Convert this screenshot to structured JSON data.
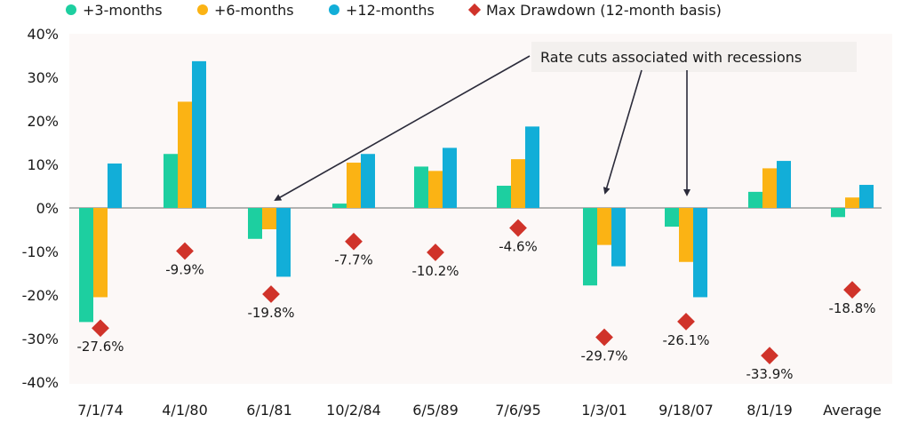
{
  "chart_data": {
    "type": "bar",
    "title": "",
    "xlabel": "",
    "ylabel": "",
    "ylim": [
      -40,
      40
    ],
    "yticks": [
      40,
      30,
      20,
      10,
      0,
      -10,
      -20,
      -30,
      -40
    ],
    "ytick_labels": [
      "40%",
      "30%",
      "20%",
      "10%",
      "0%",
      "-10%",
      "-20%",
      "-30%",
      "-40%"
    ],
    "grid": false,
    "legend_position": "top",
    "categories": [
      "7/1/74",
      "4/1/80",
      "6/1/81",
      "10/2/84",
      "6/5/89",
      "7/6/95",
      "1/3/01",
      "9/18/07",
      "8/1/19",
      "Average"
    ],
    "series": [
      {
        "name": "+3-months",
        "kind": "bar",
        "color": "#1dcfa0",
        "values": [
          -26.2,
          12.4,
          -7.1,
          1.0,
          9.5,
          5.1,
          -17.8,
          -4.3,
          3.7,
          -2.1
        ]
      },
      {
        "name": "+6-months",
        "kind": "bar",
        "color": "#fbb314",
        "values": [
          -20.5,
          24.4,
          -4.9,
          10.4,
          8.5,
          11.2,
          -8.5,
          -12.4,
          9.1,
          2.4
        ]
      },
      {
        "name": "+12-months",
        "kind": "bar",
        "color": "#12aed8",
        "values": [
          10.2,
          33.7,
          -15.8,
          12.4,
          13.8,
          18.7,
          -13.4,
          -20.5,
          10.8,
          5.3
        ]
      },
      {
        "name": "Max Drawdown (12-month basis)",
        "kind": "marker",
        "marker": "diamond",
        "color": "#d0332a",
        "values": [
          -27.6,
          -9.9,
          -19.8,
          -7.7,
          -10.2,
          -4.6,
          -29.7,
          -26.1,
          -33.9,
          -18.8
        ],
        "labels": [
          "-27.6%",
          "-9.9%",
          "-19.8%",
          "-7.7%",
          "-10.2%",
          "-4.6%",
          "-29.7%",
          "-26.1%",
          "-33.9%",
          "-18.8%"
        ]
      }
    ],
    "annotations": [
      {
        "text": "Rate cuts associated with recessions",
        "points_to": [
          "6/1/81",
          "1/3/01",
          "9/18/07"
        ]
      }
    ]
  },
  "colors": {
    "plot_background": "#fcf8f7",
    "zero_line": "#9a9a9a",
    "arrow": "#2b2b3a",
    "annotation_box": "#f3f0ee"
  }
}
